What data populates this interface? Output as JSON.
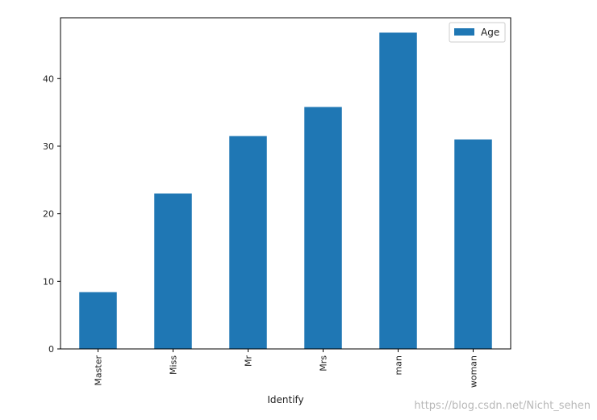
{
  "chart_data": {
    "type": "bar",
    "categories": [
      "Master",
      "Miss",
      "Mr",
      "Mrs",
      "man",
      "woman"
    ],
    "series": [
      {
        "name": "Age",
        "values": [
          8.4,
          23.0,
          31.5,
          35.8,
          46.8,
          31.0
        ]
      }
    ],
    "xlabel": "Identify",
    "ylabel": "",
    "ylim": [
      0,
      49
    ],
    "yticks": [
      0,
      10,
      20,
      30,
      40
    ],
    "grid": false,
    "legend_position": "top-right",
    "colors": {
      "bar": "#1f77b4",
      "axis": "#000000"
    }
  },
  "watermark": "https://blog.csdn.net/Nicht_sehen"
}
